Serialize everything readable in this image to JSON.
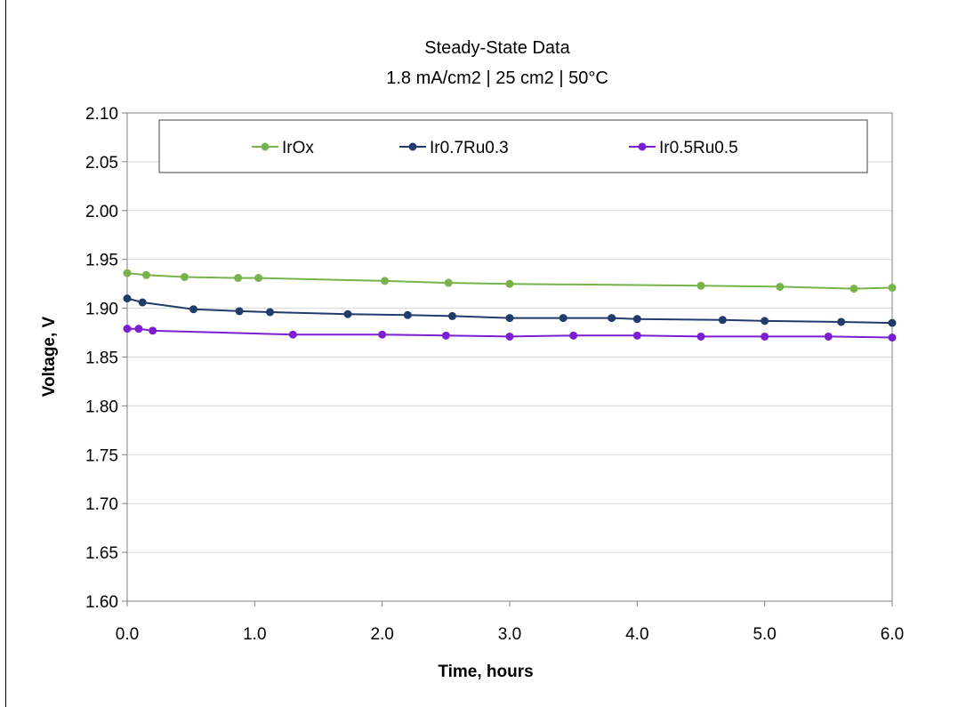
{
  "chart_data": {
    "type": "line",
    "title": "Steady-State Data",
    "subtitle": "1.8 mA/cm2 | 25 cm2 | 50°C",
    "xlabel": "Time, hours",
    "ylabel": "Voltage, V",
    "xlim": [
      0,
      6
    ],
    "ylim": [
      1.6,
      2.1
    ],
    "xticks": [
      "0.0",
      "1.0",
      "2.0",
      "3.0",
      "4.0",
      "5.0",
      "6.0"
    ],
    "yticks": [
      "1.60",
      "1.65",
      "1.70",
      "1.75",
      "1.80",
      "1.85",
      "1.90",
      "1.95",
      "2.00",
      "2.05",
      "2.10"
    ],
    "grid": "horizontal",
    "legend_position": "top",
    "series": [
      {
        "name": "IrOx",
        "color": "#77b24a",
        "x": [
          0.0,
          0.15,
          0.45,
          0.87,
          1.03,
          2.02,
          2.52,
          3.0,
          4.5,
          5.12,
          5.7,
          6.0
        ],
        "y": [
          1.936,
          1.934,
          1.932,
          1.931,
          1.931,
          1.928,
          1.926,
          1.925,
          1.923,
          1.922,
          1.92,
          1.921
        ]
      },
      {
        "name": "Ir0.7Ru0.3",
        "color": "#213b6b",
        "x": [
          0.0,
          0.12,
          0.52,
          0.88,
          1.12,
          1.73,
          2.2,
          2.55,
          3.0,
          3.42,
          3.8,
          4.0,
          4.67,
          5.0,
          5.6,
          6.0
        ],
        "y": [
          1.91,
          1.906,
          1.899,
          1.897,
          1.896,
          1.894,
          1.893,
          1.892,
          1.89,
          1.89,
          1.89,
          1.889,
          1.888,
          1.887,
          1.886,
          1.885
        ]
      },
      {
        "name": "Ir0.5Ru0.5",
        "color": "#7a1fd2",
        "x": [
          0.0,
          0.09,
          0.2,
          1.3,
          2.0,
          2.5,
          3.0,
          3.5,
          4.0,
          4.5,
          5.0,
          5.5,
          6.0
        ],
        "y": [
          1.879,
          1.879,
          1.877,
          1.873,
          1.873,
          1.872,
          1.871,
          1.872,
          1.872,
          1.871,
          1.871,
          1.871,
          1.87
        ]
      }
    ]
  }
}
